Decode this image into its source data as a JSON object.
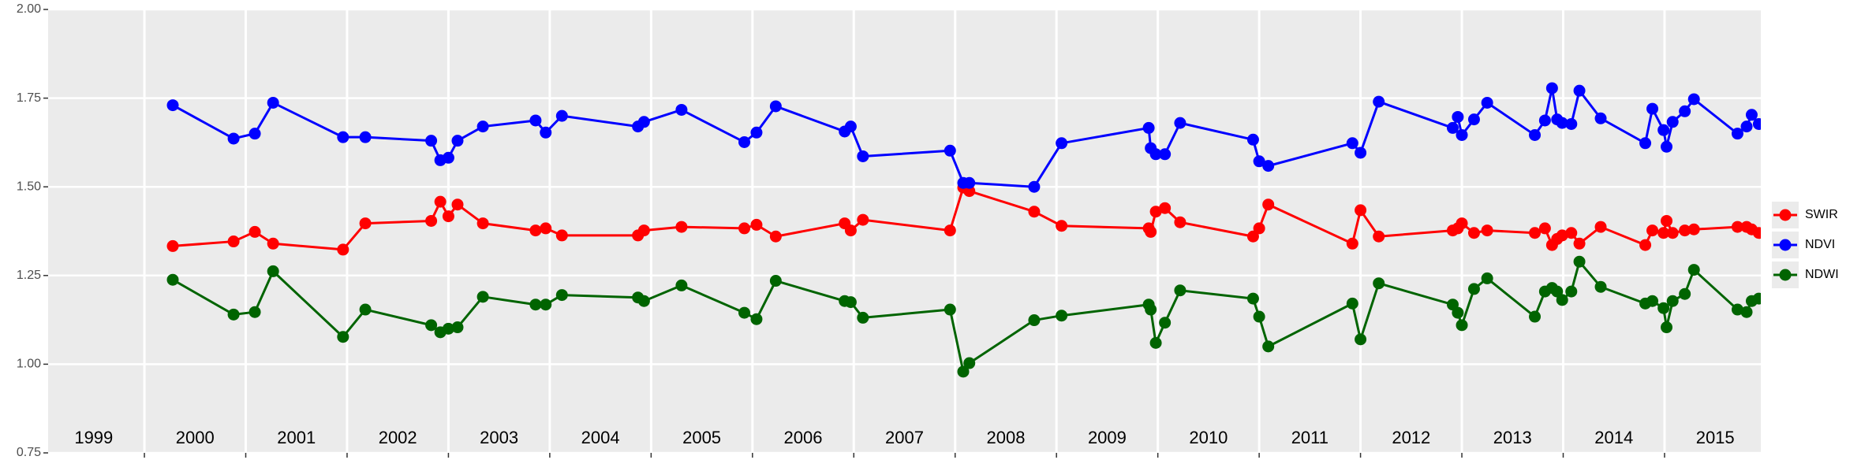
{
  "chart_data": {
    "type": "line",
    "x": [
      2000.28,
      2000.88,
      2001.09,
      2001.27,
      2001.96,
      2002.18,
      2002.83,
      2002.92,
      2003.0,
      2003.09,
      2003.34,
      2003.86,
      2003.96,
      2004.12,
      2004.87,
      2004.93,
      2005.3,
      2005.92,
      2006.04,
      2006.23,
      2006.91,
      2006.97,
      2007.09,
      2007.95,
      2008.08,
      2008.14,
      2008.78,
      2009.05,
      2009.91,
      2009.93,
      2009.98,
      2010.07,
      2010.22,
      2010.94,
      2011.0,
      2011.09,
      2011.92,
      2012.0,
      2012.18,
      2012.91,
      2012.96,
      2013.0,
      2013.12,
      2013.25,
      2013.72,
      2013.82,
      2013.89,
      2013.94,
      2013.99,
      2014.08,
      2014.16,
      2014.37,
      2014.81,
      2014.88,
      2014.99,
      2015.02,
      2015.08,
      2015.2,
      2015.29,
      2015.72,
      2015.81,
      2015.86,
      2015.93
    ],
    "series": [
      {
        "name": "SWIR",
        "color": "#ff0000",
        "values": [
          1.333,
          1.346,
          1.373,
          1.34,
          1.323,
          1.397,
          1.404,
          1.458,
          1.417,
          1.45,
          1.397,
          1.377,
          1.383,
          1.363,
          1.363,
          1.377,
          1.387,
          1.383,
          1.393,
          1.36,
          1.397,
          1.377,
          1.407,
          1.377,
          1.498,
          1.488,
          1.43,
          1.39,
          1.383,
          1.373,
          1.43,
          1.44,
          1.4,
          1.36,
          1.383,
          1.45,
          1.34,
          1.434,
          1.36,
          1.377,
          1.383,
          1.397,
          1.37,
          1.377,
          1.37,
          1.383,
          1.336,
          1.353,
          1.363,
          1.37,
          1.34,
          1.387,
          1.336,
          1.377,
          1.37,
          1.404,
          1.37,
          1.377,
          1.38,
          1.387,
          1.387,
          1.38,
          1.37
        ]
      },
      {
        "name": "NDVI",
        "color": "#0000ff",
        "values": [
          1.73,
          1.636,
          1.65,
          1.737,
          1.64,
          1.64,
          1.63,
          1.575,
          1.582,
          1.63,
          1.67,
          1.687,
          1.653,
          1.7,
          1.67,
          1.683,
          1.717,
          1.626,
          1.653,
          1.727,
          1.656,
          1.67,
          1.586,
          1.602,
          1.511,
          1.511,
          1.5,
          1.623,
          1.666,
          1.609,
          1.592,
          1.592,
          1.68,
          1.633,
          1.572,
          1.559,
          1.623,
          1.596,
          1.74,
          1.666,
          1.697,
          1.646,
          1.69,
          1.737,
          1.646,
          1.687,
          1.778,
          1.69,
          1.68,
          1.677,
          1.771,
          1.693,
          1.623,
          1.72,
          1.66,
          1.613,
          1.683,
          1.713,
          1.747,
          1.65,
          1.67,
          1.703,
          1.677
        ]
      },
      {
        "name": "NDWI",
        "color": "#006400",
        "values": [
          1.238,
          1.14,
          1.147,
          1.262,
          1.077,
          1.154,
          1.11,
          1.09,
          1.1,
          1.104,
          1.19,
          1.168,
          1.168,
          1.195,
          1.188,
          1.178,
          1.222,
          1.145,
          1.127,
          1.235,
          1.178,
          1.175,
          1.131,
          1.154,
          0.979,
          1.003,
          1.124,
          1.137,
          1.168,
          1.154,
          1.06,
          1.117,
          1.208,
          1.185,
          1.134,
          1.05,
          1.171,
          1.07,
          1.228,
          1.168,
          1.145,
          1.11,
          1.212,
          1.242,
          1.134,
          1.205,
          1.215,
          1.205,
          1.181,
          1.205,
          1.289,
          1.218,
          1.171,
          1.178,
          1.158,
          1.104,
          1.178,
          1.198,
          1.266,
          1.154,
          1.147,
          1.178,
          1.185
        ]
      }
    ],
    "xlim": [
      1999.05,
      2015.95
    ],
    "xticks": [
      2000,
      2001,
      2002,
      2003,
      2004,
      2005,
      2006,
      2007,
      2008,
      2009,
      2010,
      2011,
      2012,
      2013,
      2014,
      2015
    ],
    "ylim": [
      0.75,
      2.0
    ],
    "yticks": [
      {
        "value": 0.75,
        "label": "0.75"
      },
      {
        "value": 1.0,
        "label": "1.00"
      },
      {
        "value": 1.25,
        "label": "1.25"
      },
      {
        "value": 1.5,
        "label": "1.50"
      },
      {
        "value": 1.75,
        "label": "1.75"
      },
      {
        "value": 2.0,
        "label": "2.00"
      }
    ],
    "grid": true,
    "legend": "right",
    "annotations": [
      {
        "text": "1999",
        "x": 1999.5,
        "y": 0.79
      },
      {
        "text": "2000",
        "x": 2000.5,
        "y": 0.79
      },
      {
        "text": "2001",
        "x": 2001.5,
        "y": 0.79
      },
      {
        "text": "2002",
        "x": 2002.5,
        "y": 0.79
      },
      {
        "text": "2003",
        "x": 2003.5,
        "y": 0.79
      },
      {
        "text": "2004",
        "x": 2004.5,
        "y": 0.79
      },
      {
        "text": "2005",
        "x": 2005.5,
        "y": 0.79
      },
      {
        "text": "2006",
        "x": 2006.5,
        "y": 0.79
      },
      {
        "text": "2007",
        "x": 2007.5,
        "y": 0.79
      },
      {
        "text": "2008",
        "x": 2008.5,
        "y": 0.79
      },
      {
        "text": "2009",
        "x": 2009.5,
        "y": 0.79
      },
      {
        "text": "2010",
        "x": 2010.5,
        "y": 0.79
      },
      {
        "text": "2011",
        "x": 2011.5,
        "y": 0.79
      },
      {
        "text": "2012",
        "x": 2012.5,
        "y": 0.79
      },
      {
        "text": "2013",
        "x": 2013.5,
        "y": 0.79
      },
      {
        "text": "2014",
        "x": 2014.5,
        "y": 0.79
      },
      {
        "text": "2015",
        "x": 2015.5,
        "y": 0.79
      }
    ]
  }
}
